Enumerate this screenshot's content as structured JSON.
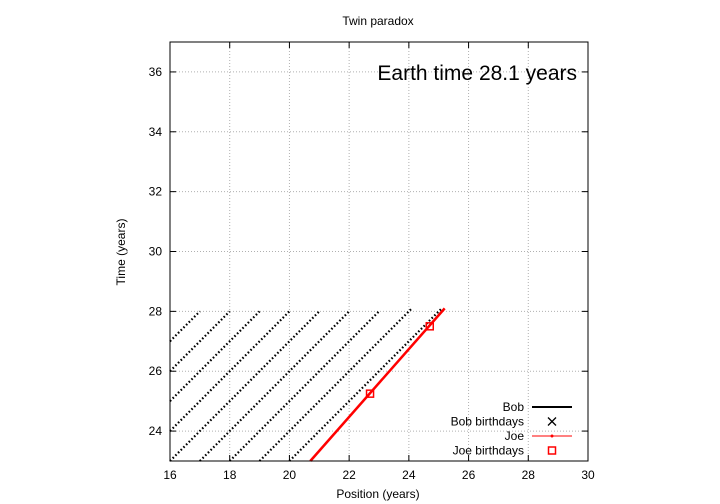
{
  "chart_data": {
    "type": "line",
    "title": "Twin paradox",
    "annotation": "Earth time 28.1 years",
    "xlabel": "Position (years)",
    "ylabel": "Time (years)",
    "xlim": [
      16,
      30
    ],
    "ylim": [
      23,
      37
    ],
    "xticks": [
      "16",
      "18",
      "20",
      "22",
      "24",
      "26",
      "28",
      "30"
    ],
    "yticks": [
      "24",
      "26",
      "28",
      "30",
      "32",
      "34",
      "36"
    ],
    "grid": true,
    "legend_position": "bottom-right",
    "colors": {
      "bob": "#000000",
      "joe": "#ff0000",
      "grid": "#b0b0b0"
    },
    "series": [
      {
        "name": "Bob",
        "style": "dotted-worldlines",
        "lines": [
          {
            "x": [
              16,
              17
            ],
            "y": [
              27,
              28
            ]
          },
          {
            "x": [
              16,
              18
            ],
            "y": [
              26,
              28
            ]
          },
          {
            "x": [
              16,
              19
            ],
            "y": [
              25,
              28
            ]
          },
          {
            "x": [
              16,
              20
            ],
            "y": [
              24,
              28
            ]
          },
          {
            "x": [
              16,
              21
            ],
            "y": [
              23,
              28
            ]
          },
          {
            "x": [
              17,
              22
            ],
            "y": [
              23,
              28
            ]
          },
          {
            "x": [
              18,
              23
            ],
            "y": [
              23,
              28
            ]
          },
          {
            "x": [
              19,
              24.1
            ],
            "y": [
              23,
              28.1
            ]
          },
          {
            "x": [
              20,
              25.1
            ],
            "y": [
              23,
              28.1
            ]
          }
        ]
      },
      {
        "name": "Bob birthdays",
        "points": []
      },
      {
        "name": "Joe",
        "x": [
          20.7,
          25.2
        ],
        "y": [
          23,
          28.1
        ]
      },
      {
        "name": "Joe birthdays",
        "x": [
          22.7,
          24.7
        ],
        "y": [
          25.25,
          27.5
        ]
      }
    ]
  }
}
